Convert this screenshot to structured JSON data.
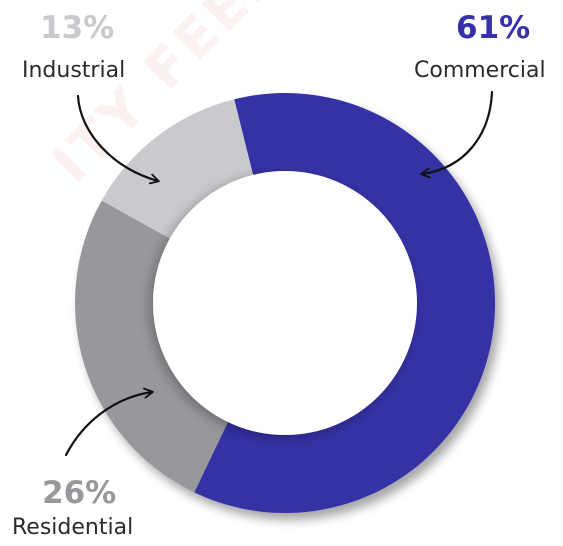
{
  "chart_data": {
    "type": "pie",
    "variant": "donut",
    "categories": [
      "Commercial",
      "Residential",
      "Industrial"
    ],
    "values": [
      61,
      26,
      13
    ],
    "value_labels": [
      "61%",
      "26%",
      "13%"
    ],
    "colors": [
      "#3631a6",
      "#97989c",
      "#c9cacd"
    ],
    "label_colors": [
      "#3631a6",
      "#97989c",
      "#c9cacd"
    ],
    "title": "",
    "legend": "none"
  },
  "watermark": "ITY FEEDBACK"
}
